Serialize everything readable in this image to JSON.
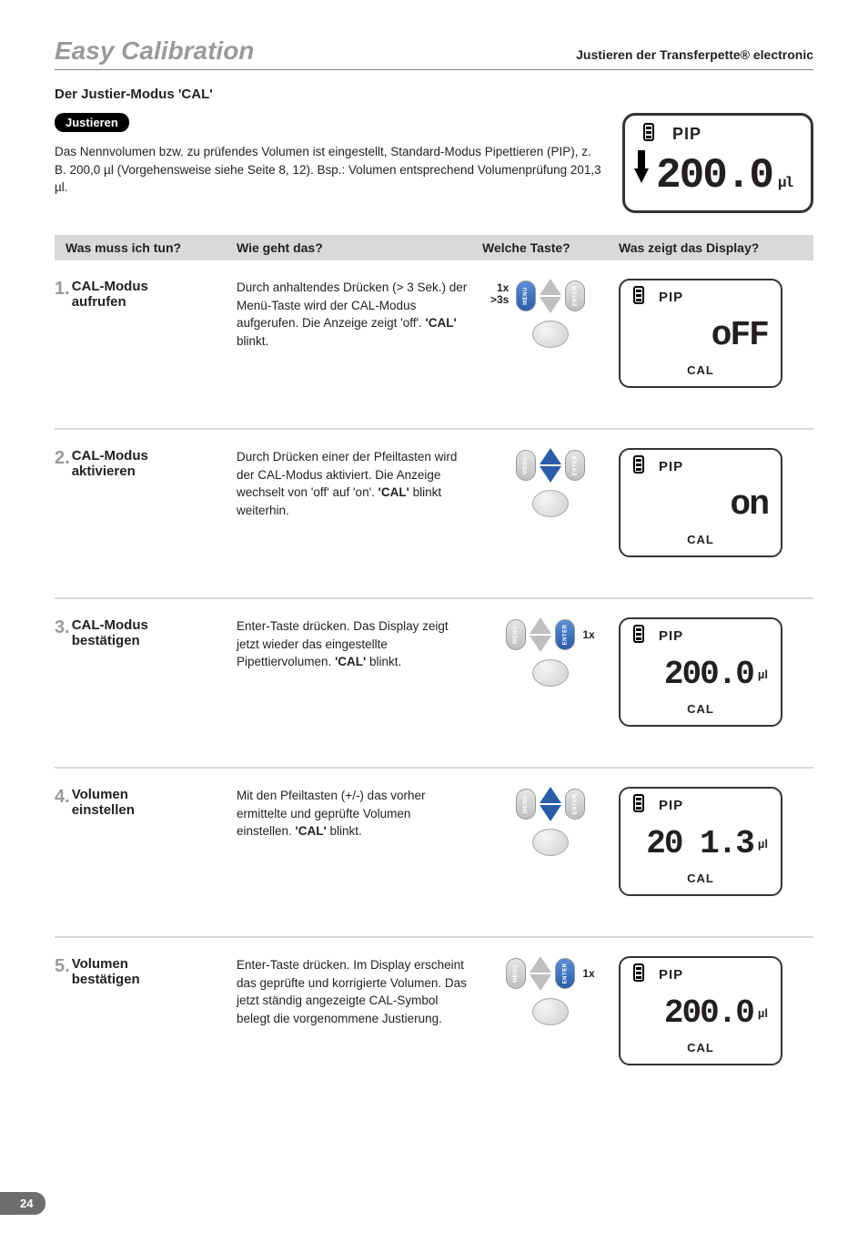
{
  "header": {
    "main_title": "Easy Calibration",
    "sub_title": "Justieren der Transferpette® electronic"
  },
  "section_heading": "Der Justier-Modus 'CAL'",
  "pill_label": "Justieren",
  "intro_text": "Das Nennvolumen bzw. zu prüfendes Volumen ist eingestellt, Standard-Modus Pipettieren (PIP), z. B. 200,0 µl (Vorgehensweise siehe Seite 8, 12). Bsp.: Volumen entsprechend Volumenprüfung 201,3 µl.",
  "main_lcd": {
    "pip_label": "PIP",
    "value": "200.0",
    "unit": "µl"
  },
  "table_headers": {
    "tun": "Was muss ich tun?",
    "wie": "Wie geht das?",
    "taste": "Welche Taste?",
    "display": "Was zeigt das Display?"
  },
  "steps": [
    {
      "num": "1.",
      "title": "CAL-Modus aufrufen",
      "desc": "Durch anhaltendes Drücken (> 3 Sek.) der Menü-Taste wird der CAL-Modus aufgerufen. Die Anzeige zeigt 'off'. 'CAL' blinkt.",
      "press_info": "1x\n>3s",
      "press_side": "left",
      "lcd": {
        "pip": "PIP",
        "value": "oFF",
        "unit": "",
        "cal": "CAL",
        "isnum": false
      }
    },
    {
      "num": "2.",
      "title": "CAL-Modus aktivieren",
      "desc": "Durch Drücken einer der Pfeiltasten wird der CAL-Modus aktiviert. Die Anzeige wechselt von 'off' auf 'on'. 'CAL' blinkt weiterhin.",
      "press_info": "",
      "press_side": "none",
      "lcd": {
        "pip": "PIP",
        "value": "on",
        "unit": "",
        "cal": "CAL",
        "isnum": false
      }
    },
    {
      "num": "3.",
      "title": "CAL-Modus bestätigen",
      "desc": "Enter-Taste drücken. Das Display zeigt jetzt wieder das eingestellte Pipettiervolumen. 'CAL' blinkt.",
      "press_info": "1x",
      "press_side": "right",
      "lcd": {
        "pip": "PIP",
        "value": "200.0",
        "unit": "µl",
        "cal": "CAL",
        "isnum": true
      }
    },
    {
      "num": "4.",
      "title": "Volumen einstellen",
      "desc": "Mit den Pfeiltasten (+/-) das vorher ermittelte und geprüfte Volumen einstellen. 'CAL' blinkt.",
      "press_info": "",
      "press_side": "none",
      "lcd": {
        "pip": "PIP",
        "value": "20 1.3",
        "unit": "µl",
        "cal": "CAL",
        "isnum": true
      }
    },
    {
      "num": "5.",
      "title": "Volumen bestätigen",
      "desc": "Enter-Taste drücken. Im Display erscheint das geprüfte und korrigierte Volumen. Das jetzt ständig angezeigte CAL-Symbol belegt die vorgenommene Justierung.",
      "press_info": "1x",
      "press_side": "right",
      "lcd": {
        "pip": "PIP",
        "value": "200.0",
        "unit": "µl",
        "cal": "CAL",
        "isnum": true
      }
    }
  ],
  "button_labels": {
    "menu": "MENU",
    "enter": "ENTER"
  },
  "page_number": "24",
  "colors": {
    "title_gray": "#9a9a9a",
    "blue_arrow": "#2a5caa",
    "header_bg": "#d9d9d9",
    "tab_bg": "#6d6d6d"
  }
}
